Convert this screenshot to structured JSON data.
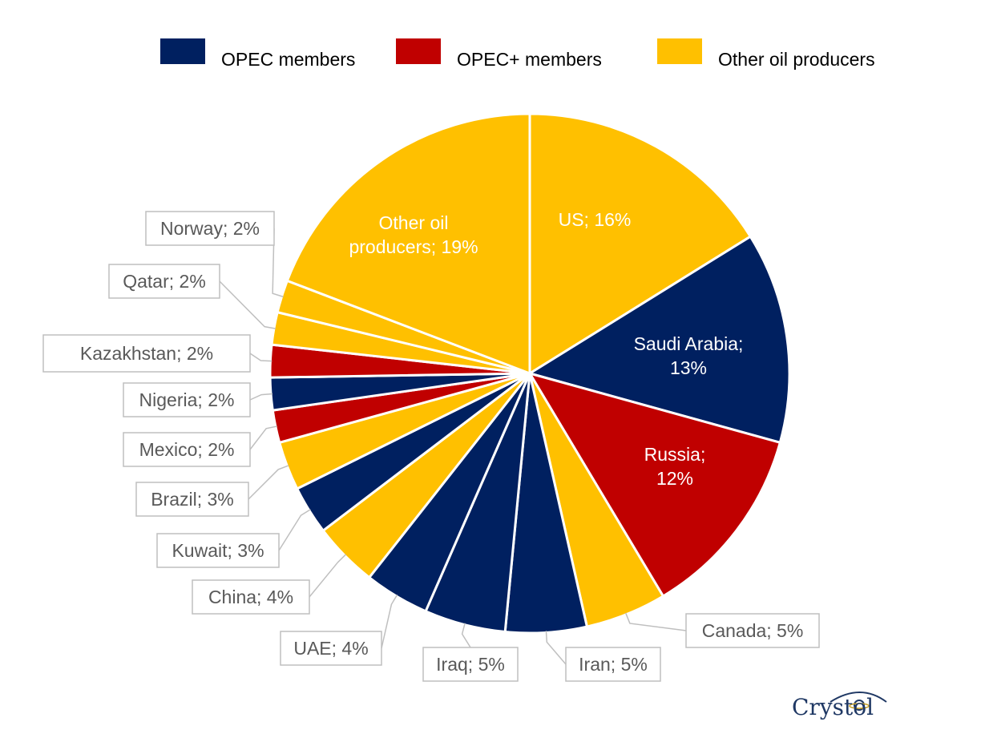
{
  "chart_data": {
    "type": "pie",
    "legend": [
      {
        "name": "OPEC members",
        "color": "#002060"
      },
      {
        "name": "OPEC+ members",
        "color": "#C00000"
      },
      {
        "name": "Other oil producers",
        "color": "#FFC000"
      }
    ],
    "legend_position": "top",
    "slices": [
      {
        "label": "US",
        "value": 16,
        "group": "Other oil producers",
        "display": "US; 16%"
      },
      {
        "label": "Saudi Arabia",
        "value": 13,
        "group": "OPEC members",
        "display": "Saudi Arabia; 13%"
      },
      {
        "label": "Russia",
        "value": 12,
        "group": "OPEC+ members",
        "display": "Russia; 12%"
      },
      {
        "label": "Canada",
        "value": 5,
        "group": "Other oil producers",
        "display": "Canada; 5%"
      },
      {
        "label": "Iran",
        "value": 5,
        "group": "OPEC members",
        "display": "Iran; 5%"
      },
      {
        "label": "Iraq",
        "value": 5,
        "group": "OPEC members",
        "display": "Iraq; 5%"
      },
      {
        "label": "UAE",
        "value": 4,
        "group": "OPEC members",
        "display": "UAE; 4%"
      },
      {
        "label": "China",
        "value": 4,
        "group": "Other oil producers",
        "display": "China; 4%"
      },
      {
        "label": "Kuwait",
        "value": 3,
        "group": "OPEC members",
        "display": "Kuwait; 3%"
      },
      {
        "label": "Brazil",
        "value": 3,
        "group": "Other oil producers",
        "display": "Brazil; 3%"
      },
      {
        "label": "Mexico",
        "value": 2,
        "group": "OPEC+ members",
        "display": "Mexico; 2%"
      },
      {
        "label": "Nigeria",
        "value": 2,
        "group": "OPEC members",
        "display": "Nigeria; 2%"
      },
      {
        "label": "Kazakhstan",
        "value": 2,
        "group": "OPEC+ members",
        "display": "Kazakhstan; 2%"
      },
      {
        "label": "Qatar",
        "value": 2,
        "group": "Other oil producers",
        "display": "Qatar; 2%"
      },
      {
        "label": "Norway",
        "value": 2,
        "group": "Other oil producers",
        "display": "Norway; 2%"
      },
      {
        "label": "Other oil producers",
        "value": 19,
        "group": "Other oil producers",
        "display": "Other oil producers; 19%"
      }
    ]
  },
  "logo": {
    "text": "Crystol",
    "color": "#1F3864"
  }
}
